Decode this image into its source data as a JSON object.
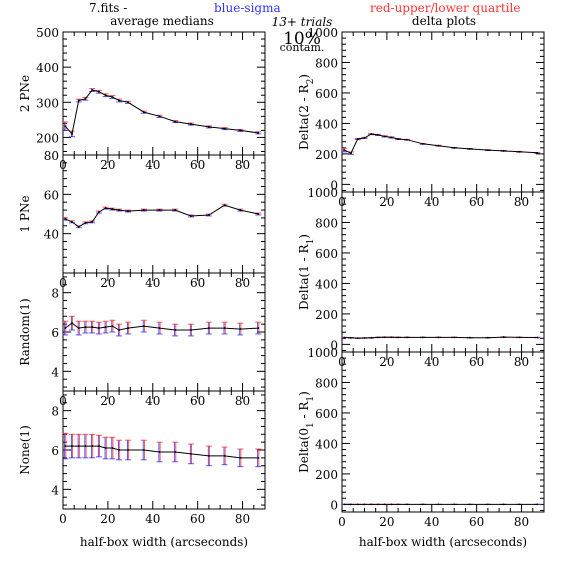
{
  "header": {
    "file_label": "7.fits  -",
    "sigma_label": "blue-sigma",
    "quartile_label": "red-upper/lower quartile",
    "trials_label": "13+ trials",
    "contam_pct": "10%",
    "contam_label": "contam.",
    "left_title": "average medians",
    "right_title": "delta plots"
  },
  "colors": {
    "median_line": "#000000",
    "sigma": "#3333ff",
    "quartile": "#ff3333",
    "axes": "#000000"
  },
  "chart_data": [
    {
      "type": "line",
      "ylabel": "2 PNe",
      "xlim": [
        0,
        90
      ],
      "ylim": [
        150,
        500
      ],
      "xticks": [
        0,
        20,
        40,
        60,
        80
      ],
      "yticks": [
        200,
        300,
        400,
        500
      ],
      "series": [
        {
          "x": [
            1,
            4,
            7,
            10,
            13,
            16,
            19,
            22,
            25,
            29,
            36,
            43,
            50,
            57,
            65,
            72,
            79,
            87
          ],
          "y": [
            232,
            210,
            305,
            310,
            335,
            330,
            320,
            315,
            305,
            300,
            272,
            260,
            245,
            238,
            230,
            225,
            220,
            213
          ],
          "err": [
            12,
            8,
            4,
            4,
            4,
            4,
            4,
            4,
            4,
            3,
            3,
            3,
            3,
            3,
            3,
            3,
            3,
            3
          ]
        }
      ]
    },
    {
      "type": "line",
      "ylabel": "1 PNe",
      "xlim": [
        0,
        90
      ],
      "ylim": [
        20,
        80
      ],
      "xticks": [
        0,
        20,
        40,
        60,
        80
      ],
      "yticks": [
        40,
        60,
        80
      ],
      "series": [
        {
          "x": [
            1,
            4,
            7,
            10,
            13,
            16,
            19,
            22,
            25,
            29,
            36,
            43,
            50,
            57,
            65,
            72,
            79,
            87
          ],
          "y": [
            47.5,
            46,
            43.5,
            45.5,
            46,
            51,
            53,
            52.5,
            52,
            51.5,
            52,
            52,
            52,
            49,
            49.5,
            54.5,
            52,
            50
          ],
          "err": [
            0.6,
            0.5,
            0.5,
            0.5,
            0.5,
            0.5,
            0.5,
            0.5,
            0.5,
            0.5,
            0.5,
            0.5,
            0.5,
            0.5,
            0.5,
            0.5,
            0.5,
            0.5
          ]
        }
      ]
    },
    {
      "type": "line",
      "ylabel": "Random(1)",
      "xlim": [
        0,
        90
      ],
      "ylim": [
        3,
        9
      ],
      "xticks": [
        0,
        20,
        40,
        60,
        80
      ],
      "yticks": [
        4,
        6,
        8
      ],
      "series": [
        {
          "x": [
            1,
            4,
            7,
            10,
            13,
            16,
            19,
            22,
            25,
            29,
            36,
            43,
            50,
            57,
            65,
            72,
            79,
            87
          ],
          "y": [
            6.2,
            6.45,
            6.2,
            6.25,
            6.25,
            6.2,
            6.25,
            6.3,
            6.1,
            6.2,
            6.3,
            6.2,
            6.1,
            6.1,
            6.2,
            6.2,
            6.15,
            6.2
          ],
          "err": [
            0.35,
            0.35,
            0.35,
            0.3,
            0.3,
            0.3,
            0.3,
            0.3,
            0.3,
            0.3,
            0.3,
            0.3,
            0.3,
            0.3,
            0.3,
            0.3,
            0.3,
            0.3
          ]
        }
      ]
    },
    {
      "type": "line",
      "ylabel": "None(1)",
      "xlim": [
        0,
        90
      ],
      "ylim": [
        3,
        9
      ],
      "xticks": [
        0,
        20,
        40,
        60,
        80
      ],
      "yticks": [
        4,
        6,
        8
      ],
      "series": [
        {
          "x": [
            1,
            4,
            7,
            10,
            13,
            16,
            19,
            22,
            25,
            29,
            36,
            43,
            50,
            57,
            65,
            72,
            79,
            87
          ],
          "y": [
            6.2,
            6.2,
            6.2,
            6.2,
            6.2,
            6.2,
            6.1,
            6.1,
            6.0,
            6.0,
            6.0,
            5.9,
            5.9,
            5.8,
            5.7,
            5.7,
            5.6,
            5.6
          ],
          "err": [
            0.65,
            0.6,
            0.6,
            0.6,
            0.6,
            0.55,
            0.55,
            0.55,
            0.5,
            0.5,
            0.5,
            0.5,
            0.5,
            0.5,
            0.5,
            0.45,
            0.45,
            0.45
          ]
        }
      ]
    },
    {
      "type": "line",
      "ylabel": "Delta(2 - R",
      "ylabel_sub": "2",
      "ylabel_end": ")",
      "xlim": [
        0,
        90
      ],
      "ylim": [
        -50,
        1000
      ],
      "xticks": [
        0,
        20,
        40,
        60,
        80
      ],
      "yticks": [
        0,
        200,
        400,
        600,
        800,
        1000
      ],
      "series": [
        {
          "x": [
            1,
            4,
            7,
            10,
            13,
            16,
            19,
            22,
            25,
            29,
            36,
            43,
            50,
            57,
            65,
            72,
            79,
            87
          ],
          "y": [
            225,
            205,
            298,
            305,
            330,
            325,
            315,
            308,
            298,
            293,
            266,
            254,
            240,
            233,
            225,
            220,
            214,
            207
          ],
          "err": [
            12,
            8,
            4,
            4,
            4,
            4,
            4,
            4,
            4,
            3,
            3,
            3,
            3,
            3,
            3,
            3,
            3,
            3
          ]
        }
      ]
    },
    {
      "type": "line",
      "ylabel": "Delta(1 - R",
      "ylabel_sub": "1",
      "ylabel_end": ")",
      "xlim": [
        0,
        90
      ],
      "ylim": [
        -50,
        1000
      ],
      "xticks": [
        0,
        20,
        40,
        60,
        80
      ],
      "yticks": [
        0,
        200,
        400,
        600,
        800,
        1000
      ],
      "series": [
        {
          "x": [
            1,
            4,
            7,
            10,
            13,
            16,
            19,
            22,
            25,
            29,
            36,
            43,
            50,
            57,
            65,
            72,
            79,
            87
          ],
          "y": [
            45,
            43,
            41,
            42,
            43,
            46,
            47,
            47,
            46,
            46,
            46,
            46,
            46,
            44,
            44,
            48,
            46,
            45
          ],
          "err": [
            2,
            2,
            2,
            2,
            2,
            2,
            2,
            2,
            2,
            2,
            2,
            2,
            2,
            2,
            2,
            2,
            2,
            2
          ]
        }
      ]
    },
    {
      "type": "line",
      "ylabel": "Delta(0",
      "ylabel_sub": "1",
      "ylabel_end": " - R",
      "ylabel_sub2": "1",
      "ylabel_end2": ")",
      "xlabel": "half-box width (arcseconds)",
      "xlim": [
        0,
        90
      ],
      "ylim": [
        -50,
        1000
      ],
      "xticks": [
        0,
        20,
        40,
        60,
        80
      ],
      "yticks": [
        0,
        200,
        400,
        600,
        800,
        1000
      ],
      "series": [
        {
          "x": [
            1,
            4,
            7,
            10,
            13,
            16,
            19,
            22,
            25,
            29,
            36,
            43,
            50,
            57,
            65,
            72,
            79,
            87
          ],
          "y": [
            0,
            0,
            0,
            0,
            0,
            0,
            0,
            0,
            0,
            0,
            0,
            0,
            0,
            0,
            0,
            0,
            0,
            0
          ],
          "err": [
            1,
            1,
            1,
            1,
            1,
            1,
            1,
            1,
            1,
            1,
            1,
            1,
            1,
            1,
            1,
            1,
            1,
            1
          ]
        }
      ]
    }
  ],
  "left_xlabel": "half-box width (arcseconds)"
}
